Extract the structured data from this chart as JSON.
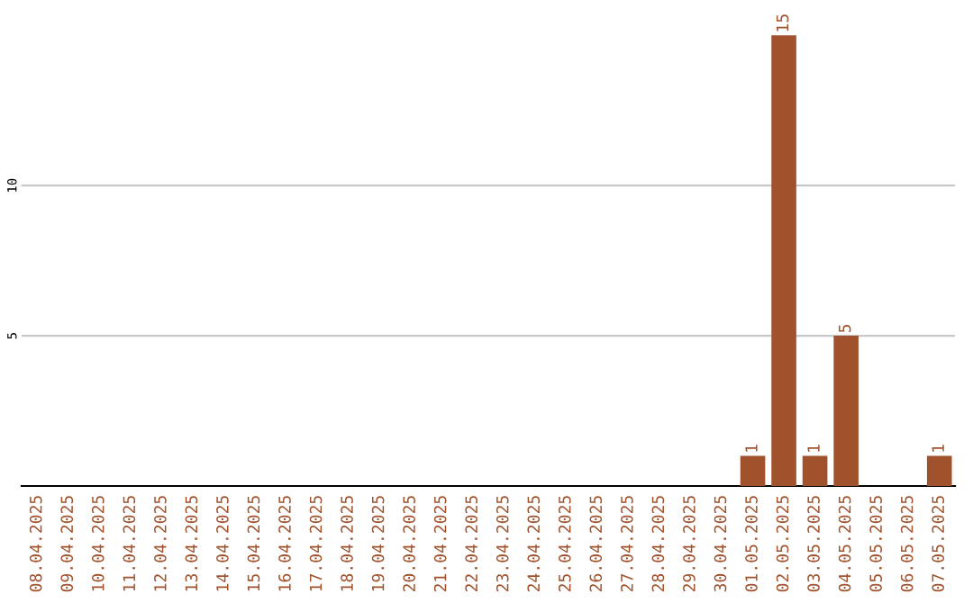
{
  "chart_data": {
    "type": "bar",
    "categories": [
      "08.04.2025",
      "09.04.2025",
      "10.04.2025",
      "11.04.2025",
      "12.04.2025",
      "13.04.2025",
      "14.04.2025",
      "15.04.2025",
      "16.04.2025",
      "17.04.2025",
      "18.04.2025",
      "19.04.2025",
      "20.04.2025",
      "21.04.2025",
      "22.04.2025",
      "23.04.2025",
      "24.04.2025",
      "25.04.2025",
      "26.04.2025",
      "27.04.2025",
      "28.04.2025",
      "29.04.2025",
      "30.04.2025",
      "01.05.2025",
      "02.05.2025",
      "03.05.2025",
      "04.05.2025",
      "05.05.2025",
      "06.05.2025",
      "07.05.2025"
    ],
    "values": [
      0,
      0,
      0,
      0,
      0,
      0,
      0,
      0,
      0,
      0,
      0,
      0,
      0,
      0,
      0,
      0,
      0,
      0,
      0,
      0,
      0,
      0,
      0,
      1,
      15,
      1,
      5,
      0,
      0,
      1
    ],
    "value_labels": [
      null,
      null,
      null,
      null,
      null,
      null,
      null,
      null,
      null,
      null,
      null,
      null,
      null,
      null,
      null,
      null,
      null,
      null,
      null,
      null,
      null,
      null,
      null,
      "1",
      "15",
      "1",
      "5",
      null,
      null,
      "1"
    ],
    "color": "#a0522d",
    "ylim": [
      0,
      15.1
    ],
    "yticks": [
      5,
      10
    ],
    "grid": "y"
  }
}
